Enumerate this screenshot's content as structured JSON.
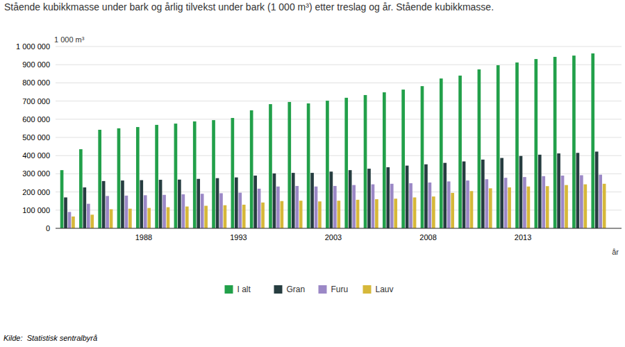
{
  "chart_data": {
    "type": "bar",
    "title": "Stående kubikkmasse under bark og årlig tilvekst under bark (1 000 m³) etter treslag og år. Stående kubikkmasse.",
    "y_label": "1 000 m³",
    "x_label": "år",
    "source": "Kilde:  Statistisk sentralbyrå",
    "categories": [
      null,
      null,
      null,
      null,
      "1988",
      null,
      null,
      null,
      null,
      "1993",
      null,
      null,
      null,
      null,
      "2003",
      null,
      null,
      null,
      null,
      "2008",
      null,
      null,
      null,
      null,
      "2013",
      null,
      null,
      null,
      null
    ],
    "series": [
      {
        "name": "I alt",
        "color": "#22a04a",
        "values": [
          320000,
          435000,
          542000,
          550000,
          557000,
          569000,
          576000,
          588000,
          595000,
          607000,
          649000,
          683000,
          695000,
          687000,
          702000,
          718000,
          733000,
          748000,
          763000,
          782000,
          824000,
          840000,
          874000,
          897000,
          912000,
          931000,
          943000,
          950000,
          962000
        ]
      },
      {
        "name": "Gran",
        "color": "#263d40",
        "values": [
          170000,
          225000,
          260000,
          263000,
          265000,
          267000,
          268000,
          272000,
          276000,
          280000,
          290000,
          302000,
          305000,
          305000,
          312000,
          320000,
          328000,
          336000,
          345000,
          352000,
          360000,
          368000,
          378000,
          387000,
          398000,
          405000,
          412000,
          415000,
          422000
        ]
      },
      {
        "name": "Furu",
        "color": "#9b88c6",
        "values": [
          90000,
          135000,
          178000,
          180000,
          182000,
          184000,
          187000,
          190000,
          193000,
          196000,
          218000,
          230000,
          233000,
          230000,
          233000,
          238000,
          242000,
          245000,
          248000,
          252000,
          258000,
          263000,
          270000,
          278000,
          282000,
          287000,
          290000,
          292000,
          295000
        ]
      },
      {
        "name": "Lauv",
        "color": "#d6b83a",
        "values": [
          65000,
          75000,
          105000,
          108000,
          112000,
          116000,
          120000,
          124000,
          127000,
          130000,
          142000,
          150000,
          152000,
          148000,
          152000,
          157000,
          160000,
          163000,
          170000,
          175000,
          195000,
          205000,
          220000,
          225000,
          230000,
          232000,
          238000,
          242000,
          245000
        ]
      }
    ],
    "ylim": [
      0,
      1000000
    ],
    "yticks": [
      0,
      {
        "value": 100000,
        "label": "100 000"
      },
      {
        "value": 200000,
        "label": "200 000"
      },
      {
        "value": 300000,
        "label": "300 000"
      },
      {
        "value": 400000,
        "label": "400 000"
      },
      {
        "value": 500000,
        "label": "500 000"
      },
      {
        "value": 600000,
        "label": "600 000"
      },
      {
        "value": 700000,
        "label": "700 000"
      },
      {
        "value": 800000,
        "label": "800 000"
      },
      {
        "value": 900000,
        "label": "900 000"
      },
      {
        "value": 1000000,
        "label": "1 000 000"
      }
    ],
    "grid": true,
    "legend": "bottom"
  }
}
